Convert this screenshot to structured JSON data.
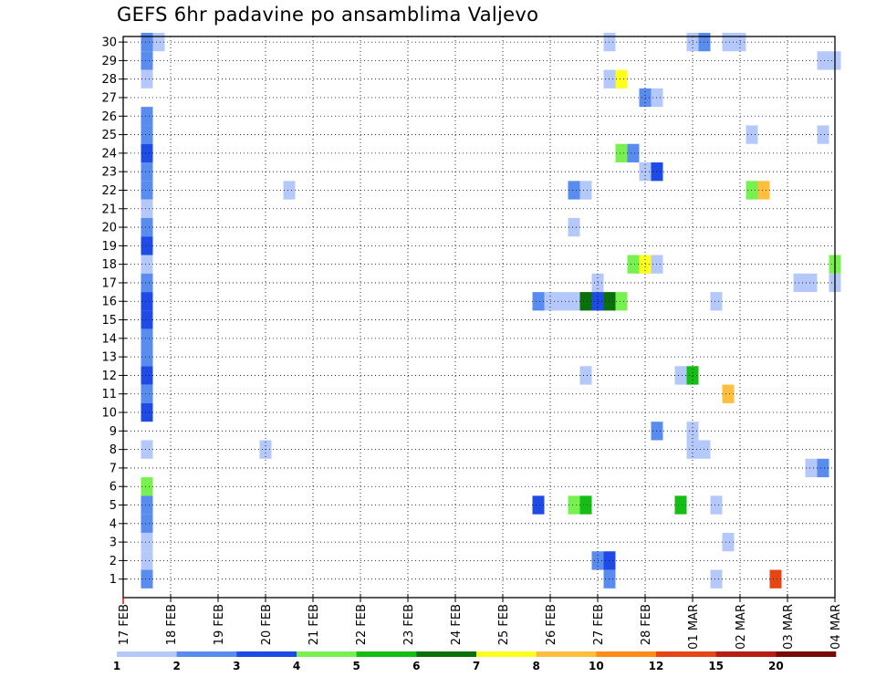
{
  "chart_data": {
    "type": "heatmap",
    "title": "GEFS 6hr padavine po ansamblima Valjevo",
    "xlabel": "",
    "ylabel": "",
    "x_ticks": [
      "17 FEB",
      "18 FEB",
      "19 FEB",
      "20 FEB",
      "21 FEB",
      "22 FEB",
      "23 FEB",
      "24 FEB",
      "25 FEB",
      "26 FEB",
      "27 FEB",
      "28 FEB",
      "01 MAR",
      "02 MAR",
      "03 MAR",
      "04 MAR"
    ],
    "y_ticks": [
      "1",
      "2",
      "3",
      "4",
      "5",
      "6",
      "7",
      "8",
      "9",
      "10",
      "11",
      "12",
      "13",
      "14",
      "15",
      "16",
      "17",
      "18",
      "19",
      "20",
      "21",
      "22",
      "23",
      "24",
      "25",
      "26",
      "27",
      "28",
      "29",
      "30"
    ],
    "xlim_days_from_17feb": [
      0,
      15
    ],
    "ylim": [
      0,
      30.3
    ],
    "grid": true,
    "colorbar": {
      "levels": [
        "1",
        "2",
        "3",
        "4",
        "5",
        "6",
        "7",
        "8",
        "10",
        "12",
        "15",
        "20"
      ],
      "colors": [
        "#b4c8fa",
        "#5a8cf0",
        "#1e4be6",
        "#78f050",
        "#14be14",
        "#0a700a",
        "#ffff1e",
        "#ffbe3c",
        "#ff8c14",
        "#e64614",
        "#b41e14",
        "#780a0a"
      ]
    },
    "cells_note": "each cell: [day offset from 17 FEB 00Z, member, color index (0 = 1-2 mm ... 11 = over 20 mm)]",
    "cells": [
      [
        0.5,
        30,
        1
      ],
      [
        0.5,
        29,
        1
      ],
      [
        0.5,
        28,
        0
      ],
      [
        0.5,
        26,
        1
      ],
      [
        0.5,
        25,
        1
      ],
      [
        0.5,
        24,
        2
      ],
      [
        0.5,
        23,
        1
      ],
      [
        0.5,
        22,
        1
      ],
      [
        0.5,
        21,
        0
      ],
      [
        0.5,
        20,
        1
      ],
      [
        0.5,
        19,
        2
      ],
      [
        0.5,
        18,
        0
      ],
      [
        0.5,
        17,
        1
      ],
      [
        0.5,
        16,
        2
      ],
      [
        0.5,
        15,
        2
      ],
      [
        0.5,
        14,
        1
      ],
      [
        0.5,
        13,
        1
      ],
      [
        0.5,
        12,
        2
      ],
      [
        0.5,
        11,
        1
      ],
      [
        0.5,
        10,
        2
      ],
      [
        0.5,
        8,
        0
      ],
      [
        0.5,
        6,
        3
      ],
      [
        0.5,
        5,
        1
      ],
      [
        0.5,
        4,
        1
      ],
      [
        0.5,
        3,
        0
      ],
      [
        0.5,
        2,
        0
      ],
      [
        0.5,
        1,
        1
      ],
      [
        0.75,
        30,
        0
      ],
      [
        3.0,
        8,
        0
      ],
      [
        3.5,
        22,
        0
      ],
      [
        8.75,
        5,
        2
      ],
      [
        8.75,
        16,
        1
      ],
      [
        9.0,
        16,
        0
      ],
      [
        9.25,
        16,
        0
      ],
      [
        9.5,
        22,
        1
      ],
      [
        9.5,
        20,
        0
      ],
      [
        9.5,
        16,
        0
      ],
      [
        9.5,
        5,
        3
      ],
      [
        9.75,
        22,
        0
      ],
      [
        9.75,
        16,
        5
      ],
      [
        9.75,
        12,
        0
      ],
      [
        9.75,
        5,
        4
      ],
      [
        10.0,
        17,
        0
      ],
      [
        10.0,
        16,
        2
      ],
      [
        10.0,
        2,
        1
      ],
      [
        10.25,
        30,
        0
      ],
      [
        10.25,
        28,
        0
      ],
      [
        10.25,
        16,
        5
      ],
      [
        10.25,
        2,
        2
      ],
      [
        10.25,
        1,
        1
      ],
      [
        10.5,
        28,
        6
      ],
      [
        10.5,
        24,
        3
      ],
      [
        10.5,
        16,
        3
      ],
      [
        10.75,
        24,
        1
      ],
      [
        10.75,
        18,
        3
      ],
      [
        11.0,
        27,
        1
      ],
      [
        11.0,
        23,
        0
      ],
      [
        11.0,
        18,
        6
      ],
      [
        11.25,
        27,
        0
      ],
      [
        11.25,
        23,
        2
      ],
      [
        11.25,
        18,
        0
      ],
      [
        11.25,
        9,
        1
      ],
      [
        11.75,
        12,
        0
      ],
      [
        11.75,
        5,
        4
      ],
      [
        12.0,
        30,
        0
      ],
      [
        12.0,
        12,
        4
      ],
      [
        12.0,
        9,
        0
      ],
      [
        12.0,
        8,
        0
      ],
      [
        12.25,
        30,
        1
      ],
      [
        12.25,
        8,
        0
      ],
      [
        12.5,
        16,
        0
      ],
      [
        12.5,
        5,
        0
      ],
      [
        12.5,
        1,
        0
      ],
      [
        12.75,
        30,
        0
      ],
      [
        12.75,
        11,
        7
      ],
      [
        12.75,
        3,
        0
      ],
      [
        13.0,
        30,
        0
      ],
      [
        13.25,
        25,
        0
      ],
      [
        13.25,
        22,
        3
      ],
      [
        13.5,
        22,
        7
      ],
      [
        13.75,
        1,
        9
      ],
      [
        14.25,
        17,
        0
      ],
      [
        14.5,
        17,
        0
      ],
      [
        14.5,
        7,
        0
      ],
      [
        14.75,
        29,
        0
      ],
      [
        14.75,
        25,
        0
      ],
      [
        14.75,
        7,
        1
      ],
      [
        15.0,
        29,
        0
      ],
      [
        15.0,
        18,
        3
      ],
      [
        15.0,
        17,
        0
      ]
    ]
  }
}
